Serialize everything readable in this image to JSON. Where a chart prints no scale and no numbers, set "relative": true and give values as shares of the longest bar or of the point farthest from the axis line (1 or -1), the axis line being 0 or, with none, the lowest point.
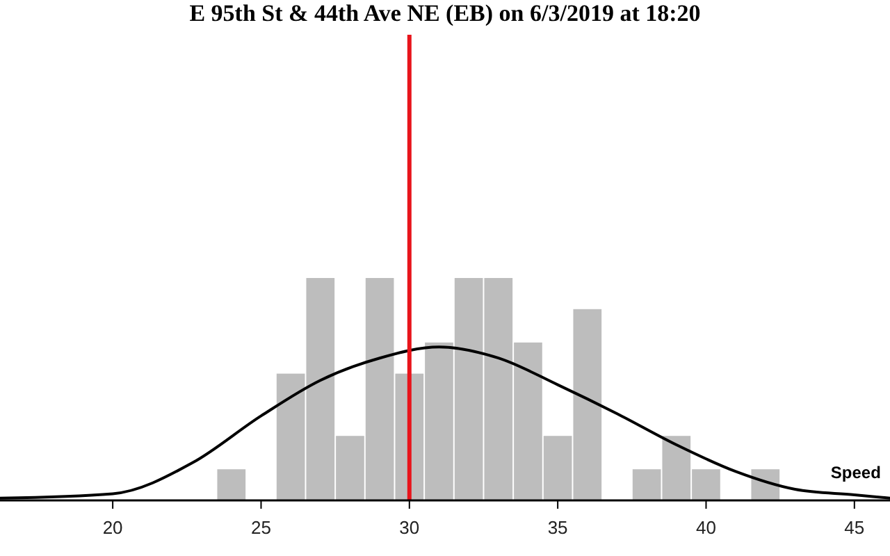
{
  "chart_data": {
    "type": "histogram",
    "title": "E 95th St & 44th Ave NE (EB) on 6/3/2019 at 18:20",
    "relative": true,
    "xlim": [
      16.2,
      46.2
    ],
    "xticks": [
      20,
      25,
      30,
      35,
      40,
      45
    ],
    "bins": [
      23.5,
      24.5,
      25.5,
      26.5,
      27.5,
      28.5,
      29.5,
      30.5,
      31.5,
      32.5,
      33.5,
      34.5,
      35.5,
      36.5,
      37.5,
      38.5,
      39.5,
      40.5,
      41.5,
      42.5
    ],
    "values": [
      0.14,
      0,
      0.57,
      1,
      0.29,
      1,
      0.57,
      0.71,
      1,
      1,
      0.71,
      0.29,
      0.86,
      0,
      0.14,
      0.29,
      0.14,
      0,
      0.14
    ],
    "color": "#bdbdbd",
    "series": [
      {
        "type": "line",
        "name": "Speed",
        "color": "#000000",
        "x": [
          16.2,
          20,
          22.7,
          25,
          27,
          29,
          31,
          33,
          35,
          37,
          39,
          41,
          43,
          45,
          46.2
        ],
        "values": [
          0.01,
          0.03,
          0.17,
          0.38,
          0.54,
          0.64,
          0.69,
          0.64,
          0.52,
          0.39,
          0.25,
          0.13,
          0.05,
          0.025,
          0.01
        ]
      }
    ],
    "ref_lines": [
      {
        "axis": "x",
        "value": 30,
        "color": "#e8141b"
      }
    ]
  }
}
